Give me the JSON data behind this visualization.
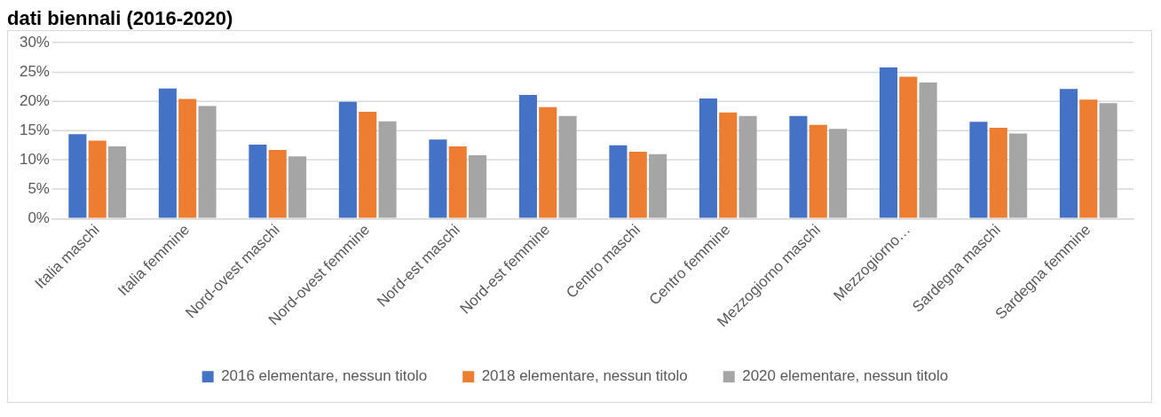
{
  "chart_data": {
    "type": "bar",
    "title": "dati biennali (2016-2020)",
    "categories": [
      "Italia maschi",
      "Italia femmine",
      "Nord-ovest maschi",
      "Nord-ovest femmine",
      "Nord-est maschi",
      "Nord-est femmine",
      "Centro maschi",
      "Centro femmine",
      "Mezzogiorno maschi",
      "Mezzogiorno…",
      "Sardegna maschi",
      "Sardegna femmine"
    ],
    "series": [
      {
        "name": "2016 elementare, nessun titolo",
        "color": "#4472c4",
        "values": [
          14.4,
          22.2,
          12.6,
          19.9,
          13.5,
          21.1,
          12.5,
          20.5,
          17.5,
          25.8,
          16.5,
          22.1
        ]
      },
      {
        "name": "2018 elementare, nessun titolo",
        "color": "#ed7d31",
        "values": [
          13.3,
          20.4,
          11.7,
          18.2,
          12.3,
          19.0,
          11.4,
          18.1,
          16.0,
          24.2,
          15.5,
          20.3
        ]
      },
      {
        "name": "2020 elementare, nessun titolo",
        "color": "#a5a5a5",
        "values": [
          12.3,
          19.2,
          10.6,
          16.6,
          10.8,
          17.5,
          11.0,
          17.5,
          15.3,
          23.2,
          14.5,
          19.7
        ]
      }
    ],
    "ylim": [
      0,
      30
    ],
    "yticks": [
      {
        "value": 0,
        "label": "0%"
      },
      {
        "value": 5,
        "label": "5%"
      },
      {
        "value": 10,
        "label": "10%"
      },
      {
        "value": 15,
        "label": "15%"
      },
      {
        "value": 20,
        "label": "20%"
      },
      {
        "value": 25,
        "label": "25%"
      },
      {
        "value": 30,
        "label": "30%"
      }
    ],
    "grid": "y",
    "legend": "bottom"
  }
}
